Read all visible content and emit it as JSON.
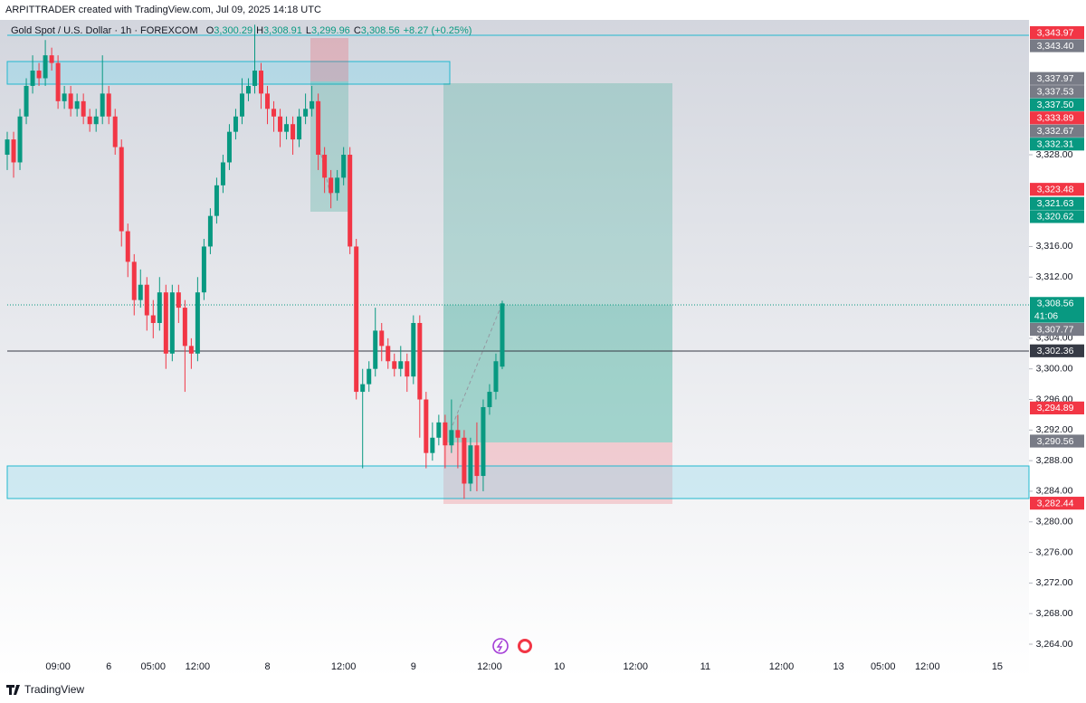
{
  "chart_data": {
    "type": "candlestick",
    "credit": "ARPITTRADER created with TradingView.com, Jul 09, 2025 14:18 UTC",
    "symbol": "Gold Spot / U.S. Dollar · 1h · FOREXCOM",
    "ohlc_legend": [
      {
        "key": "O",
        "value": 3300.29,
        "label": "3,300.29"
      },
      {
        "key": "H",
        "value": 3308.91,
        "label": "3,308.91"
      },
      {
        "key": "L",
        "value": 3299.96,
        "label": "3,299.96"
      },
      {
        "key": "C",
        "value": 3308.56,
        "label": "3,308.56"
      }
    ],
    "change": "+8.27 (+0.25%)",
    "brand": "TradingView",
    "up_color": "#089981",
    "down_color": "#f23645",
    "open": [
      3328,
      3330,
      3327,
      3333,
      3337,
      3339,
      3338,
      3341,
      3340,
      3335,
      3336,
      3334,
      3335,
      3333,
      3332,
      3333,
      3336,
      3333,
      3329,
      3318,
      3314,
      3309,
      3311,
      3307,
      3306,
      3310,
      3302,
      3310,
      3308,
      3303,
      3302,
      3310,
      3316,
      3320,
      3324,
      3327,
      3331,
      3333,
      3336,
      3337,
      3339,
      3336,
      3334,
      3333,
      3331,
      3332,
      3330,
      3333,
      3334,
      3335,
      3328,
      3325,
      3323,
      3325,
      3328,
      3316,
      3297,
      3298,
      3300,
      3305,
      3303,
      3301,
      3300,
      3301,
      3299,
      3306,
      3296,
      3289,
      3291,
      3293,
      3290,
      3292,
      3291,
      3285,
      3290,
      3286,
      3295,
      3297,
      3300.29
    ],
    "high": [
      3331,
      3331,
      3334,
      3338,
      3341,
      3340,
      3343,
      3342,
      3341,
      3337,
      3337,
      3336,
      3336,
      3334,
      3334,
      3341,
      3337,
      3334,
      3330,
      3319,
      3315,
      3313,
      3312,
      3309,
      3312,
      3311,
      3311,
      3311,
      3309,
      3304,
      3312,
      3317,
      3321,
      3325,
      3328,
      3332,
      3334,
      3338,
      3338,
      3345,
      3340,
      3337,
      3335,
      3334,
      3333,
      3333,
      3334,
      3336,
      3337,
      3336,
      3329,
      3326,
      3326,
      3329,
      3329,
      3317,
      3300,
      3301,
      3308,
      3306,
      3304,
      3302,
      3303,
      3302,
      3307,
      3307,
      3297,
      3293,
      3294,
      3294,
      3296,
      3294,
      3292,
      3291,
      3293,
      3296,
      3298,
      3302,
      3308.91
    ],
    "low": [
      3326,
      3325,
      3326,
      3332,
      3336,
      3337,
      3337,
      3339,
      3334,
      3334,
      3333,
      3333,
      3332,
      3331,
      3331,
      3332,
      3332,
      3328,
      3316,
      3312,
      3307,
      3308,
      3305,
      3304,
      3305,
      3300,
      3301,
      3306,
      3297,
      3300,
      3301,
      3309,
      3315,
      3319,
      3323,
      3326,
      3330,
      3332,
      3335,
      3336,
      3334,
      3332,
      3331,
      3329,
      3330,
      3328,
      3329,
      3332,
      3333,
      3326,
      3323,
      3321,
      3322,
      3324,
      3315,
      3296,
      3287,
      3297,
      3299,
      3301,
      3300,
      3299,
      3299,
      3297,
      3298,
      3291,
      3287,
      3288,
      3290,
      3287,
      3289,
      3287,
      3283,
      3284,
      3284,
      3284,
      3294,
      3296,
      3299.96
    ],
    "close": [
      3330,
      3327,
      3333,
      3337,
      3339,
      3338,
      3341,
      3340,
      3335,
      3336,
      3334,
      3335,
      3333,
      3332,
      3333,
      3336,
      3333,
      3329,
      3318,
      3314,
      3309,
      3311,
      3307,
      3306,
      3310,
      3302,
      3310,
      3308,
      3303,
      3302,
      3310,
      3316,
      3320,
      3324,
      3327,
      3331,
      3333,
      3336,
      3337,
      3339,
      3336,
      3334,
      3333,
      3331,
      3332,
      3330,
      3333,
      3334,
      3335,
      3328,
      3325,
      3323,
      3325,
      3328,
      3316,
      3297,
      3298,
      3300,
      3305,
      3303,
      3301,
      3300,
      3301,
      3299,
      3306,
      3296,
      3289,
      3291,
      3293,
      3290,
      3292,
      3291,
      3285,
      3290,
      3286,
      3295,
      3297,
      3301,
      3308.56
    ],
    "xlim": [
      -1,
      161
    ],
    "xticks": [
      {
        "value": 8,
        "label": "09:00"
      },
      {
        "value": 16,
        "label": "6"
      },
      {
        "value": 23,
        "label": "05:00"
      },
      {
        "value": 30,
        "label": "12:00"
      },
      {
        "value": 41,
        "label": "8"
      },
      {
        "value": 53,
        "label": "12:00"
      },
      {
        "value": 64,
        "label": "9"
      },
      {
        "value": 76,
        "label": "12:00"
      },
      {
        "value": 87,
        "label": "10"
      },
      {
        "value": 99,
        "label": "12:00"
      },
      {
        "value": 110,
        "label": "11"
      },
      {
        "value": 122,
        "label": "12:00"
      },
      {
        "value": 131,
        "label": "13"
      },
      {
        "value": 138,
        "label": "05:00"
      },
      {
        "value": 145,
        "label": "12:00"
      },
      {
        "value": 156,
        "label": "15"
      }
    ],
    "ylim": [
      3261.28,
      3345.63
    ],
    "yticks": [
      {
        "value": 3328,
        "label": "3,328.00"
      },
      {
        "value": 3316,
        "label": "3,316.00"
      },
      {
        "value": 3312,
        "label": "3,312.00"
      },
      {
        "value": 3304,
        "label": "3,304.00"
      },
      {
        "value": 3300,
        "label": "3,300.00"
      },
      {
        "value": 3296,
        "label": "3,296.00"
      },
      {
        "value": 3292,
        "label": "3,292.00"
      },
      {
        "value": 3288,
        "label": "3,288.00"
      },
      {
        "value": 3284,
        "label": "3,284.00"
      },
      {
        "value": 3280,
        "label": "3,280.00"
      },
      {
        "value": 3276,
        "label": "3,276.00"
      },
      {
        "value": 3272,
        "label": "3,272.00"
      },
      {
        "value": 3268,
        "label": "3,268.00"
      },
      {
        "value": 3264,
        "label": "3,264.00"
      }
    ],
    "price_labels": [
      {
        "value": 3343.97,
        "label": "3,343.97",
        "color": "#f23645"
      },
      {
        "value": 3343.4,
        "label": "3,343.40",
        "color": "#787b86"
      },
      {
        "value": 3337.97,
        "label": "3,337.97",
        "color": "#787b86"
      },
      {
        "value": 3337.53,
        "label": "3,337.53",
        "color": "#787b86"
      },
      {
        "value": 3337.5,
        "label": "3,337.50",
        "color": "#089981"
      },
      {
        "value": 3333.89,
        "label": "3,333.89",
        "color": "#f23645"
      },
      {
        "value": 3332.67,
        "label": "3,332.67",
        "color": "#787b86"
      },
      {
        "value": 3332.31,
        "label": "3,332.31",
        "color": "#089981"
      },
      {
        "value": 3323.48,
        "label": "3,323.48",
        "color": "#f23645"
      },
      {
        "value": 3321.63,
        "label": "3,321.63",
        "color": "#089981"
      },
      {
        "value": 3320.62,
        "label": "3,320.62",
        "color": "#089981"
      },
      {
        "value": 3308.56,
        "label": "3,308.56",
        "color": "#089981",
        "countdown": "41:06"
      },
      {
        "value": 3307.77,
        "label": "3,307.77",
        "color": "#787b86"
      },
      {
        "value": 3302.36,
        "label": "3,302.36",
        "color": "#363a45"
      },
      {
        "value": 3294.89,
        "label": "3,294.89",
        "color": "#f23645"
      },
      {
        "value": 3290.56,
        "label": "3,290.56",
        "color": "#787b86"
      },
      {
        "value": 3282.44,
        "label": "3,282.44",
        "color": "#f23645"
      }
    ]
  }
}
